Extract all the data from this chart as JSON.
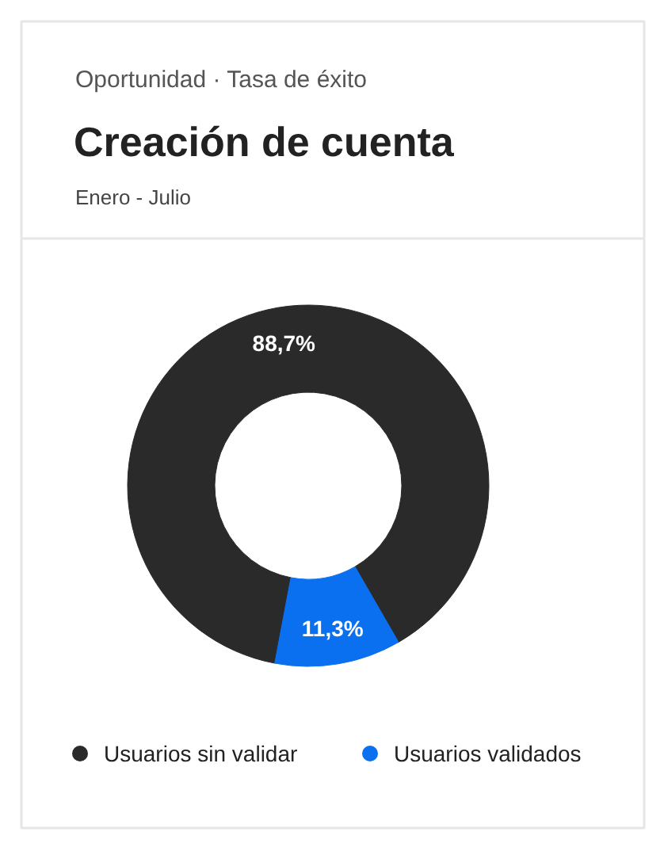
{
  "chart_data": {
    "type": "donut",
    "annotations": [
      "Oportunidad · Tasa de éxito"
    ],
    "title": "Creación de cuenta",
    "subtitle": "Enero - Julio",
    "categories": [
      "Usuarios sin validar",
      "Usuarios validados"
    ],
    "values": [
      88.7,
      11.3
    ],
    "colors": [
      "#2a2a2a",
      "#0a70f0"
    ],
    "value_labels": [
      "88,7%",
      "11,3%"
    ],
    "legend": "bottom"
  }
}
